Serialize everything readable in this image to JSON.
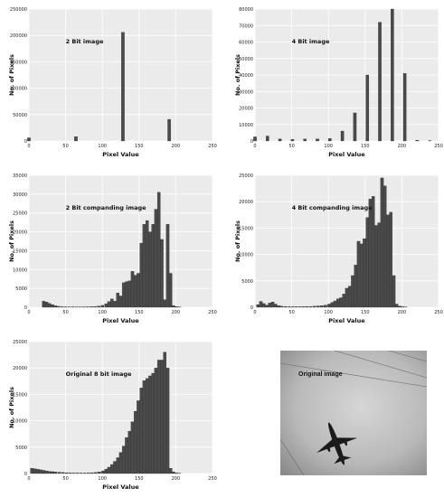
{
  "chart_data": [
    {
      "type": "bar",
      "title": "2 Bit image",
      "xlabel": "Pixel Value",
      "ylabel": "No. of Pixels",
      "xlim": [
        0,
        250
      ],
      "ylim": [
        0,
        250000
      ],
      "xticks": [
        0,
        50,
        100,
        150,
        200,
        250
      ],
      "yticks": [
        0,
        50000,
        100000,
        150000,
        200000,
        250000
      ],
      "bar_width": 4,
      "x": [
        0,
        64,
        128,
        191
      ],
      "values": [
        6000,
        8000,
        206000,
        41000
      ]
    },
    {
      "type": "bar",
      "title": "4 Bit image",
      "xlabel": "Pixel Value",
      "ylabel": "No. of Pixels",
      "xlim": [
        0,
        250
      ],
      "ylim": [
        0,
        80000
      ],
      "xticks": [
        0,
        50,
        100,
        150,
        200,
        250
      ],
      "yticks": [
        0,
        10000,
        20000,
        30000,
        40000,
        50000,
        60000,
        70000,
        80000
      ],
      "bar_width": 4,
      "x": [
        0,
        17,
        34,
        51,
        68,
        85,
        102,
        119,
        136,
        153,
        170,
        187,
        204,
        221,
        238
      ],
      "values": [
        2500,
        3000,
        1200,
        900,
        1200,
        1200,
        1500,
        6000,
        17000,
        40000,
        72000,
        80000,
        41000,
        400,
        200
      ]
    },
    {
      "type": "bar",
      "title": "2 Bit companding image",
      "xlabel": "Pixel Value",
      "ylabel": "No. of Pixels",
      "xlim": [
        0,
        250
      ],
      "ylim": [
        0,
        35000
      ],
      "xticks": [
        0,
        50,
        100,
        150,
        200,
        250
      ],
      "yticks": [
        0,
        5000,
        10000,
        15000,
        20000,
        25000,
        30000,
        35000
      ],
      "bar_width": 4,
      "x": [
        20,
        24,
        28,
        32,
        36,
        40,
        45,
        50,
        55,
        60,
        65,
        70,
        75,
        80,
        85,
        90,
        95,
        100,
        105,
        109,
        113,
        117,
        121,
        125,
        129,
        133,
        137,
        141,
        145,
        149,
        153,
        157,
        161,
        165,
        169,
        173,
        177,
        181,
        185,
        189,
        193,
        197,
        201,
        205
      ],
      "values": [
        1600,
        1400,
        1000,
        700,
        400,
        250,
        150,
        120,
        100,
        120,
        100,
        90,
        100,
        120,
        150,
        200,
        300,
        500,
        900,
        1500,
        2200,
        1600,
        3800,
        3000,
        6500,
        6800,
        7000,
        9500,
        8500,
        9000,
        17000,
        22000,
        23000,
        20000,
        22000,
        26000,
        30500,
        18000,
        2000,
        22000,
        9000,
        400,
        150,
        50
      ]
    },
    {
      "type": "bar",
      "title": "4 Bit companding image",
      "xlabel": "Pixel Value",
      "ylabel": "No. of Pixels",
      "xlim": [
        0,
        250
      ],
      "ylim": [
        0,
        25000
      ],
      "xticks": [
        0,
        50,
        100,
        150,
        200,
        250
      ],
      "yticks": [
        0,
        5000,
        10000,
        15000,
        20000,
        25000
      ],
      "bar_width": 4,
      "x": [
        4,
        8,
        12,
        16,
        20,
        24,
        28,
        32,
        36,
        41,
        46,
        51,
        56,
        61,
        66,
        71,
        76,
        81,
        86,
        91,
        96,
        101,
        105,
        109,
        113,
        117,
        121,
        125,
        129,
        133,
        137,
        141,
        145,
        149,
        153,
        157,
        161,
        165,
        169,
        173,
        177,
        181,
        185,
        189,
        193,
        197,
        201,
        205
      ],
      "values": [
        500,
        1100,
        700,
        400,
        800,
        1000,
        600,
        300,
        200,
        150,
        100,
        100,
        100,
        100,
        120,
        150,
        150,
        200,
        250,
        300,
        400,
        600,
        900,
        1200,
        1600,
        1800,
        2500,
        3600,
        4000,
        6000,
        8000,
        12500,
        12000,
        13000,
        17000,
        20500,
        21000,
        15500,
        16000,
        24500,
        23000,
        17500,
        18000,
        6000,
        600,
        200,
        100,
        50
      ]
    },
    {
      "type": "bar",
      "title": "Original 8 bit image",
      "xlabel": "Pixel Value",
      "ylabel": "No. of Pixels",
      "xlim": [
        0,
        250
      ],
      "ylim": [
        0,
        25000
      ],
      "xticks": [
        0,
        50,
        100,
        150,
        200,
        250
      ],
      "yticks": [
        0,
        5000,
        10000,
        15000,
        20000,
        25000
      ],
      "bar_width": 4,
      "x": [
        4,
        8,
        12,
        16,
        20,
        24,
        28,
        32,
        36,
        41,
        46,
        51,
        56,
        61,
        66,
        71,
        76,
        81,
        86,
        91,
        96,
        101,
        105,
        109,
        113,
        117,
        121,
        125,
        129,
        133,
        137,
        141,
        145,
        149,
        153,
        157,
        161,
        165,
        169,
        173,
        177,
        181,
        185,
        189,
        193,
        197,
        201,
        205
      ],
      "values": [
        1000,
        900,
        800,
        700,
        600,
        500,
        400,
        350,
        300,
        250,
        200,
        150,
        120,
        100,
        100,
        100,
        100,
        120,
        150,
        200,
        300,
        500,
        800,
        1200,
        1700,
        2300,
        3000,
        4000,
        5200,
        6800,
        8000,
        9800,
        11800,
        13800,
        16200,
        17600,
        18000,
        18500,
        19000,
        20000,
        21500,
        21500,
        23000,
        20000,
        1000,
        300,
        100,
        50
      ]
    }
  ],
  "photo": {
    "caption": "Original image"
  }
}
